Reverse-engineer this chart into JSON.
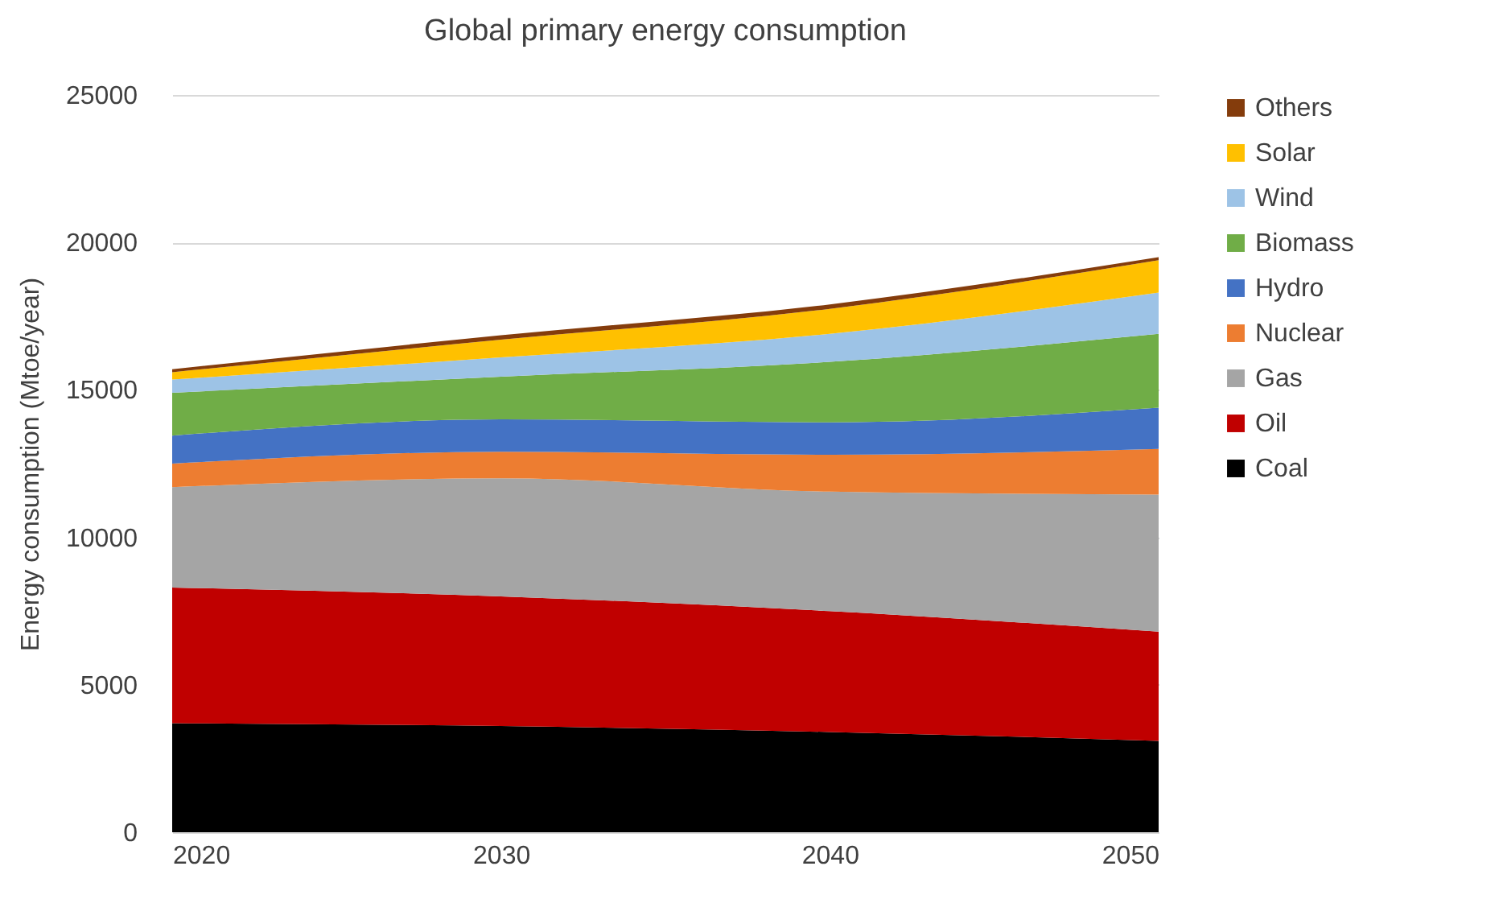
{
  "chart_data": {
    "type": "area",
    "title": "Global primary energy consumption",
    "ylabel": "Energy consumption (Mtoe/year)",
    "x": [
      2020,
      2030,
      2040,
      2050
    ],
    "xlim": [
      2020,
      2050
    ],
    "xticks": [
      2020,
      2030,
      2040,
      2050
    ],
    "ylim": [
      0,
      25000
    ],
    "yticks": [
      0,
      5000,
      10000,
      15000,
      20000,
      25000
    ],
    "stacked": true,
    "grid": "y",
    "legend": "right",
    "series": [
      {
        "name": "Coal",
        "color": "#000000",
        "values": [
          3700,
          3600,
          3400,
          3100
        ]
      },
      {
        "name": "Oil",
        "color": "#c00000",
        "values": [
          4600,
          4400,
          4100,
          3700
        ]
      },
      {
        "name": "Gas",
        "color": "#a5a5a5",
        "values": [
          3400,
          4000,
          4050,
          4650
        ]
      },
      {
        "name": "Nuclear",
        "color": "#ed7d31",
        "values": [
          800,
          900,
          1250,
          1550
        ]
      },
      {
        "name": "Hydro",
        "color": "#4472c4",
        "values": [
          950,
          1100,
          1100,
          1400
        ]
      },
      {
        "name": "Biomass",
        "color": "#70ad47",
        "values": [
          1450,
          1450,
          2050,
          2500
        ]
      },
      {
        "name": "Wind",
        "color": "#9dc3e6",
        "values": [
          450,
          650,
          950,
          1400
        ]
      },
      {
        "name": "Solar",
        "color": "#ffc000",
        "values": [
          250,
          600,
          850,
          1100
        ]
      },
      {
        "name": "Others",
        "color": "#843c0c",
        "values": [
          100,
          150,
          150,
          100
        ]
      }
    ]
  }
}
